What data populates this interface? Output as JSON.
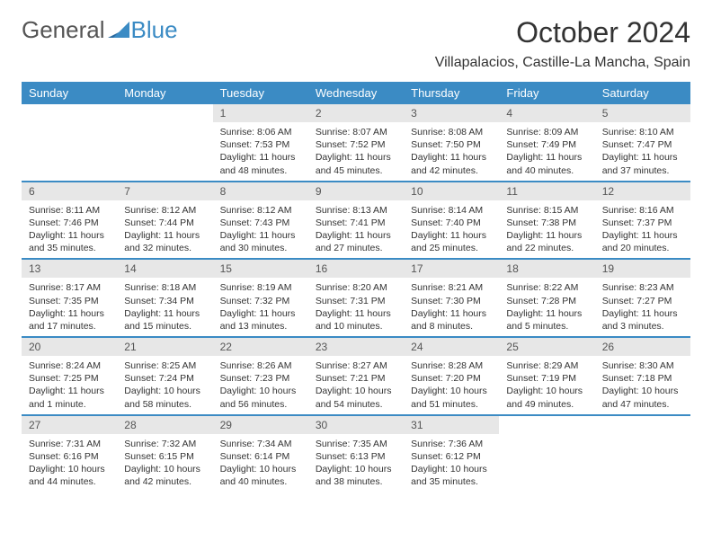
{
  "logo": {
    "text1": "General",
    "text2": "Blue"
  },
  "title": "October 2024",
  "location": "Villapalacios, Castille-La Mancha, Spain",
  "colors": {
    "accent": "#3b8bc4",
    "daynum_bg": "#e7e7e7",
    "text": "#333333",
    "white": "#ffffff"
  },
  "days_of_week": [
    "Sunday",
    "Monday",
    "Tuesday",
    "Wednesday",
    "Thursday",
    "Friday",
    "Saturday"
  ],
  "weeks": [
    [
      null,
      null,
      {
        "n": "1",
        "sunrise": "8:06 AM",
        "sunset": "7:53 PM",
        "daylight": "11 hours and 48 minutes."
      },
      {
        "n": "2",
        "sunrise": "8:07 AM",
        "sunset": "7:52 PM",
        "daylight": "11 hours and 45 minutes."
      },
      {
        "n": "3",
        "sunrise": "8:08 AM",
        "sunset": "7:50 PM",
        "daylight": "11 hours and 42 minutes."
      },
      {
        "n": "4",
        "sunrise": "8:09 AM",
        "sunset": "7:49 PM",
        "daylight": "11 hours and 40 minutes."
      },
      {
        "n": "5",
        "sunrise": "8:10 AM",
        "sunset": "7:47 PM",
        "daylight": "11 hours and 37 minutes."
      }
    ],
    [
      {
        "n": "6",
        "sunrise": "8:11 AM",
        "sunset": "7:46 PM",
        "daylight": "11 hours and 35 minutes."
      },
      {
        "n": "7",
        "sunrise": "8:12 AM",
        "sunset": "7:44 PM",
        "daylight": "11 hours and 32 minutes."
      },
      {
        "n": "8",
        "sunrise": "8:12 AM",
        "sunset": "7:43 PM",
        "daylight": "11 hours and 30 minutes."
      },
      {
        "n": "9",
        "sunrise": "8:13 AM",
        "sunset": "7:41 PM",
        "daylight": "11 hours and 27 minutes."
      },
      {
        "n": "10",
        "sunrise": "8:14 AM",
        "sunset": "7:40 PM",
        "daylight": "11 hours and 25 minutes."
      },
      {
        "n": "11",
        "sunrise": "8:15 AM",
        "sunset": "7:38 PM",
        "daylight": "11 hours and 22 minutes."
      },
      {
        "n": "12",
        "sunrise": "8:16 AM",
        "sunset": "7:37 PM",
        "daylight": "11 hours and 20 minutes."
      }
    ],
    [
      {
        "n": "13",
        "sunrise": "8:17 AM",
        "sunset": "7:35 PM",
        "daylight": "11 hours and 17 minutes."
      },
      {
        "n": "14",
        "sunrise": "8:18 AM",
        "sunset": "7:34 PM",
        "daylight": "11 hours and 15 minutes."
      },
      {
        "n": "15",
        "sunrise": "8:19 AM",
        "sunset": "7:32 PM",
        "daylight": "11 hours and 13 minutes."
      },
      {
        "n": "16",
        "sunrise": "8:20 AM",
        "sunset": "7:31 PM",
        "daylight": "11 hours and 10 minutes."
      },
      {
        "n": "17",
        "sunrise": "8:21 AM",
        "sunset": "7:30 PM",
        "daylight": "11 hours and 8 minutes."
      },
      {
        "n": "18",
        "sunrise": "8:22 AM",
        "sunset": "7:28 PM",
        "daylight": "11 hours and 5 minutes."
      },
      {
        "n": "19",
        "sunrise": "8:23 AM",
        "sunset": "7:27 PM",
        "daylight": "11 hours and 3 minutes."
      }
    ],
    [
      {
        "n": "20",
        "sunrise": "8:24 AM",
        "sunset": "7:25 PM",
        "daylight": "11 hours and 1 minute."
      },
      {
        "n": "21",
        "sunrise": "8:25 AM",
        "sunset": "7:24 PM",
        "daylight": "10 hours and 58 minutes."
      },
      {
        "n": "22",
        "sunrise": "8:26 AM",
        "sunset": "7:23 PM",
        "daylight": "10 hours and 56 minutes."
      },
      {
        "n": "23",
        "sunrise": "8:27 AM",
        "sunset": "7:21 PM",
        "daylight": "10 hours and 54 minutes."
      },
      {
        "n": "24",
        "sunrise": "8:28 AM",
        "sunset": "7:20 PM",
        "daylight": "10 hours and 51 minutes."
      },
      {
        "n": "25",
        "sunrise": "8:29 AM",
        "sunset": "7:19 PM",
        "daylight": "10 hours and 49 minutes."
      },
      {
        "n": "26",
        "sunrise": "8:30 AM",
        "sunset": "7:18 PM",
        "daylight": "10 hours and 47 minutes."
      }
    ],
    [
      {
        "n": "27",
        "sunrise": "7:31 AM",
        "sunset": "6:16 PM",
        "daylight": "10 hours and 44 minutes."
      },
      {
        "n": "28",
        "sunrise": "7:32 AM",
        "sunset": "6:15 PM",
        "daylight": "10 hours and 42 minutes."
      },
      {
        "n": "29",
        "sunrise": "7:34 AM",
        "sunset": "6:14 PM",
        "daylight": "10 hours and 40 minutes."
      },
      {
        "n": "30",
        "sunrise": "7:35 AM",
        "sunset": "6:13 PM",
        "daylight": "10 hours and 38 minutes."
      },
      {
        "n": "31",
        "sunrise": "7:36 AM",
        "sunset": "6:12 PM",
        "daylight": "10 hours and 35 minutes."
      },
      null,
      null
    ]
  ],
  "labels": {
    "sunrise": "Sunrise: ",
    "sunset": "Sunset: ",
    "daylight": "Daylight: "
  }
}
